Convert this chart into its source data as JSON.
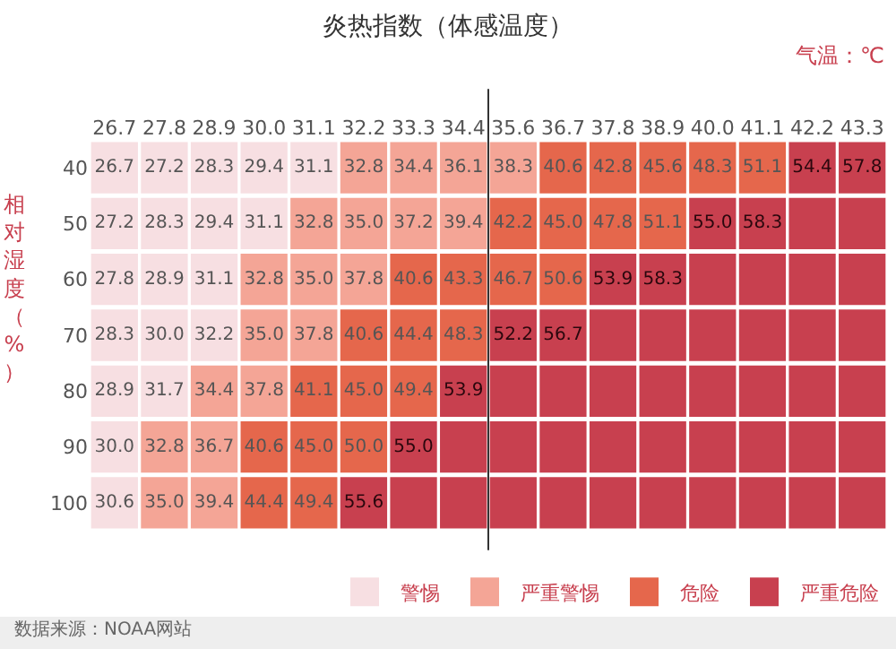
{
  "chart_data": {
    "type": "heatmap",
    "title": "炎热指数（体感温度）",
    "xlabel": "气温：℃",
    "ylabel": "相对湿度（%）",
    "categories": [
      "26.7",
      "27.8",
      "28.9",
      "30.0",
      "31.1",
      "32.2",
      "33.3",
      "34.4",
      "35.6",
      "36.7",
      "37.8",
      "38.9",
      "40.0",
      "41.1",
      "42.2",
      "43.3"
    ],
    "y_categories": [
      "40",
      "50",
      "60",
      "70",
      "80",
      "90",
      "100"
    ],
    "cells": [
      [
        26.7,
        27.2,
        28.3,
        29.4,
        31.1,
        32.8,
        34.4,
        36.1,
        38.3,
        40.6,
        42.8,
        45.6,
        48.3,
        51.1,
        54.4,
        57.8
      ],
      [
        27.2,
        28.3,
        29.4,
        31.1,
        32.8,
        35.0,
        37.2,
        39.4,
        42.2,
        45.0,
        47.8,
        51.1,
        55.0,
        58.3,
        null,
        null
      ],
      [
        27.8,
        28.9,
        31.1,
        32.8,
        35.0,
        37.8,
        40.6,
        43.3,
        46.7,
        50.6,
        53.9,
        58.3,
        null,
        null,
        null,
        null
      ],
      [
        28.3,
        30.0,
        32.2,
        35.0,
        37.8,
        40.6,
        44.4,
        48.3,
        52.2,
        56.7,
        null,
        null,
        null,
        null,
        null,
        null
      ],
      [
        28.9,
        31.7,
        34.4,
        37.8,
        41.1,
        45.0,
        49.4,
        53.9,
        null,
        null,
        null,
        null,
        null,
        null,
        null,
        null
      ],
      [
        30.0,
        32.8,
        36.7,
        40.6,
        45.0,
        50.0,
        55.0,
        null,
        null,
        null,
        null,
        null,
        null,
        null,
        null,
        null
      ],
      [
        30.6,
        35.0,
        39.4,
        44.4,
        49.4,
        55.6,
        null,
        null,
        null,
        null,
        null,
        null,
        null,
        null,
        null,
        null
      ]
    ],
    "cell_labels": [
      [
        "26.7",
        "27.2",
        "28.3",
        "29.4",
        "31.1",
        "32.8",
        "34.4",
        "36.1",
        "38.3",
        "40.6",
        "42.8",
        "45.6",
        "48.3",
        "51.1",
        "54.4",
        "57.8"
      ],
      [
        "27.2",
        "28.3",
        "29.4",
        "31.1",
        "32.8",
        "35.0",
        "37.2",
        "39.4",
        "42.2",
        "45.0",
        "47.8",
        "51.1",
        "55.0",
        "58.3",
        null,
        null
      ],
      [
        "27.8",
        "28.9",
        "31.1",
        "32.8",
        "35.0",
        "37.8",
        "40.6",
        "43.3",
        "46.7",
        "50.6",
        "53.9",
        "58.3",
        null,
        null,
        null,
        null
      ],
      [
        "28.3",
        "30.0",
        "32.2",
        "35.0",
        "37.8",
        "40.6",
        "44.4",
        "48.3",
        "52.2",
        "56.7",
        null,
        null,
        null,
        null,
        null,
        null
      ],
      [
        "28.9",
        "31.7",
        "34.4",
        "37.8",
        "41.1",
        "45.0",
        "49.4",
        "53.9",
        null,
        null,
        null,
        null,
        null,
        null,
        null,
        null
      ],
      [
        "30.0",
        "32.8",
        "36.7",
        "40.6",
        "45.0",
        "50.0",
        "55.0",
        null,
        null,
        null,
        null,
        null,
        null,
        null,
        null,
        null
      ],
      [
        "30.6",
        "35.0",
        "39.4",
        "44.4",
        "49.4",
        "55.6",
        null,
        null,
        null,
        null,
        null,
        null,
        null,
        null,
        null,
        null
      ]
    ],
    "colors": [
      [
        "#f7dfe2",
        "#f7dfe2",
        "#f7dfe2",
        "#f7dfe2",
        "#f7dfe2",
        "#f4a596",
        "#f4a596",
        "#f4a596",
        "#f4a596",
        "#e5674c",
        "#e5674c",
        "#e5674c",
        "#e5674c",
        "#e5674c",
        "#c8404f",
        "#c8404f"
      ],
      [
        "#f7dfe2",
        "#f7dfe2",
        "#f7dfe2",
        "#f7dfe2",
        "#f4a596",
        "#f4a596",
        "#f4a596",
        "#f4a596",
        "#e5674c",
        "#e5674c",
        "#e5674c",
        "#e5674c",
        "#c8404f",
        "#c8404f",
        "#c8404f",
        "#c8404f"
      ],
      [
        "#f7dfe2",
        "#f7dfe2",
        "#f7dfe2",
        "#f4a596",
        "#f4a596",
        "#f4a596",
        "#e5674c",
        "#e5674c",
        "#e5674c",
        "#e5674c",
        "#c8404f",
        "#c8404f",
        "#c8404f",
        "#c8404f",
        "#c8404f",
        "#c8404f"
      ],
      [
        "#f7dfe2",
        "#f7dfe2",
        "#f7dfe2",
        "#f4a596",
        "#f4a596",
        "#e5674c",
        "#e5674c",
        "#e5674c",
        "#c8404f",
        "#c8404f",
        "#c8404f",
        "#c8404f",
        "#c8404f",
        "#c8404f",
        "#c8404f",
        "#c8404f"
      ],
      [
        "#f7dfe2",
        "#f7dfe2",
        "#f4a596",
        "#f4a596",
        "#e5674c",
        "#e5674c",
        "#e5674c",
        "#c8404f",
        "#c8404f",
        "#c8404f",
        "#c8404f",
        "#c8404f",
        "#c8404f",
        "#c8404f",
        "#c8404f",
        "#c8404f"
      ],
      [
        "#f7dfe2",
        "#f4a596",
        "#f4a596",
        "#e5674c",
        "#e5674c",
        "#e5674c",
        "#c8404f",
        "#c8404f",
        "#c8404f",
        "#c8404f",
        "#c8404f",
        "#c8404f",
        "#c8404f",
        "#c8404f",
        "#c8404f",
        "#c8404f"
      ],
      [
        "#f7dfe2",
        "#f4a596",
        "#f4a596",
        "#e5674c",
        "#e5674c",
        "#c8404f",
        "#c8404f",
        "#c8404f",
        "#c8404f",
        "#c8404f",
        "#c8404f",
        "#c8404f",
        "#c8404f",
        "#c8404f",
        "#c8404f",
        "#c8404f"
      ]
    ],
    "series": [
      {
        "name": "警惕",
        "color": "#f7dfe2",
        "values": [
          null,
          null,
          null,
          null,
          null,
          null,
          null,
          null,
          null,
          null,
          null,
          null,
          null,
          null,
          null,
          null
        ]
      },
      {
        "name": "严重警惕",
        "color": "#f4a596",
        "values": [
          null,
          null,
          null,
          null,
          null,
          null,
          null,
          null,
          null,
          null,
          null,
          null,
          null,
          null,
          null,
          null
        ]
      },
      {
        "name": "危险",
        "color": "#e5674c",
        "values": [
          null,
          null,
          null,
          null,
          null,
          null,
          null,
          null,
          null,
          null,
          null,
          null,
          null,
          null,
          null,
          null
        ]
      },
      {
        "name": "严重危险",
        "color": "#c8404f",
        "values": [
          null,
          null,
          null,
          null,
          null,
          null,
          null,
          null,
          null,
          null,
          null,
          null,
          null,
          null,
          null,
          null
        ]
      }
    ],
    "legend": "bottom",
    "annotations": [
      "数据来源：NOAA网站"
    ]
  }
}
